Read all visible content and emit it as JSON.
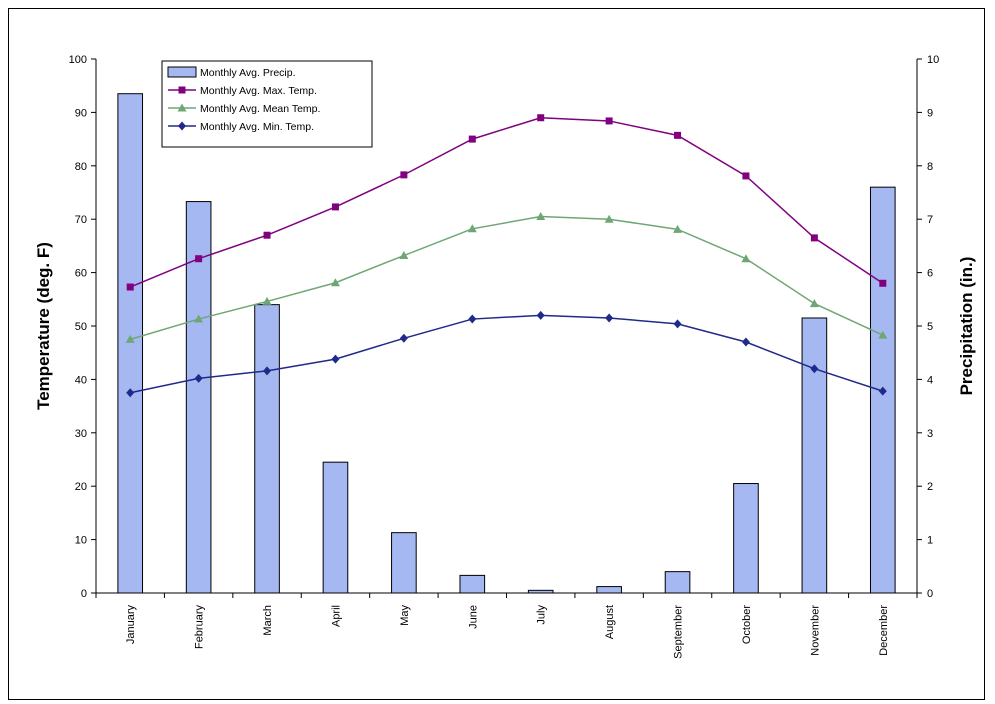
{
  "chart_data": {
    "type": "bar",
    "categories": [
      "January",
      "February",
      "March",
      "April",
      "May",
      "June",
      "July",
      "August",
      "September",
      "October",
      "November",
      "December"
    ],
    "y_left": {
      "label": "Temperature (deg. F)",
      "lim": [
        0,
        100
      ],
      "ticks": [
        0,
        10,
        20,
        30,
        40,
        50,
        60,
        70,
        80,
        90,
        100
      ]
    },
    "y_right": {
      "label": "Precipitation (in.)",
      "lim": [
        0,
        10
      ],
      "ticks": [
        0,
        1,
        2,
        3,
        4,
        5,
        6,
        7,
        8,
        9,
        10
      ]
    },
    "series": [
      {
        "name": "Monthly Avg. Precip.",
        "type": "bar",
        "axis": "right",
        "color": "#a6b8f2",
        "values": [
          9.35,
          7.33,
          5.4,
          2.45,
          1.13,
          0.33,
          0.05,
          0.12,
          0.4,
          2.05,
          5.15,
          7.6
        ]
      },
      {
        "name": "Monthly Avg. Max. Temp.",
        "type": "line",
        "axis": "left",
        "color": "#800080",
        "marker": "square",
        "values": [
          57.3,
          62.6,
          67.0,
          72.3,
          78.3,
          85.0,
          89.0,
          88.4,
          85.7,
          78.1,
          66.5,
          58.0
        ]
      },
      {
        "name": "Monthly Avg. Mean Temp.",
        "type": "line",
        "axis": "left",
        "color": "#6fa774",
        "marker": "triangle",
        "values": [
          47.5,
          51.3,
          54.6,
          58.1,
          63.2,
          68.2,
          70.5,
          70.0,
          68.1,
          62.6,
          54.2,
          48.3
        ]
      },
      {
        "name": "Monthly Avg. Min. Temp.",
        "type": "line",
        "axis": "left",
        "color": "#1f2a8a",
        "marker": "diamond",
        "values": [
          37.5,
          40.2,
          41.6,
          43.8,
          47.7,
          51.3,
          52.0,
          51.5,
          50.4,
          47.0,
          42.0,
          37.8
        ]
      }
    ],
    "legend": "top-left",
    "grid": false
  }
}
